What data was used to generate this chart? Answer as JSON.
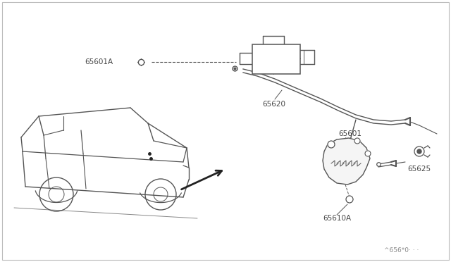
{
  "bg_color": "#ffffff",
  "line_color": "#555555",
  "text_color": "#444444",
  "border_color": "#cccccc",
  "figsize": [
    6.4,
    3.72
  ],
  "dpi": 100,
  "watermark": "^656*0· · ·"
}
